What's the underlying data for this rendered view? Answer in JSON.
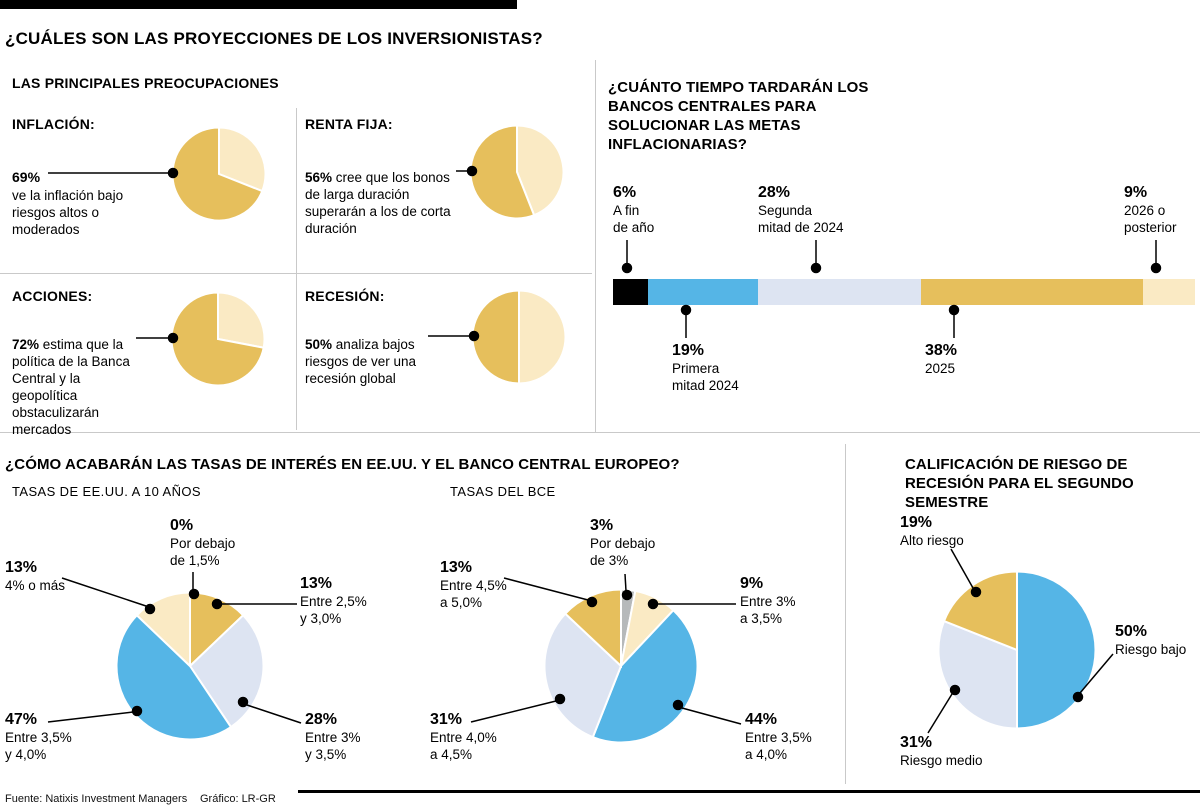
{
  "palette": {
    "gold": "#e6bf5c",
    "cream": "#faeac4",
    "blue": "#55b5e6",
    "lavender": "#dde4f2",
    "gray": "#b6b9ba",
    "black": "#000000"
  },
  "header": {
    "title": "¿CUÁLES SON LAS PROYECCIONES DE LOS INVERSIONISTAS?"
  },
  "concerns": {
    "title": "LAS PRINCIPALES PREOCUPACIONES",
    "items": [
      {
        "label": "INFLACIÓN:",
        "pct": "69%",
        "text": "ve la inflación bajo riesgos altos o moderados"
      },
      {
        "label": "RENTA FIJA:",
        "pct": "56%",
        "text": "cree que los bonos de larga duración superarán a los de corta duración"
      },
      {
        "label": "ACCIONES:",
        "pct": "72%",
        "text": "estima que la política de la Banca Central y la geopolítica obstaculizarán mercados"
      },
      {
        "label": "RECESIÓN:",
        "pct": "50%",
        "text": "analiza bajos riesgos de ver una recesión global"
      }
    ]
  },
  "timeline": {
    "title": "¿CUÁNTO TIEMPO TARDARÁN LOS BANCOS CENTRALES PARA SOLUCIONAR LAS METAS INFLACIONARIAS?",
    "callouts": [
      {
        "pct": "6%",
        "text": "A fin\nde año"
      },
      {
        "pct": "19%",
        "text": "Primera\nmitad 2024"
      },
      {
        "pct": "28%",
        "text": "Segunda\nmitad de 2024"
      },
      {
        "pct": "38%",
        "text": "2025"
      },
      {
        "pct": "9%",
        "text": "2026 o\nposterior"
      }
    ]
  },
  "rates": {
    "title": "¿CÓMO ACABARÁN LAS TASAS DE INTERÉS EN EE.UU. Y EL BANCO CENTRAL EUROPEO?",
    "us": {
      "subtitle": "TASAS DE EE.UU. A 10 AÑOS",
      "callouts": [
        {
          "pct": "0%",
          "text": "Por debajo\nde 1,5%"
        },
        {
          "pct": "13%",
          "text": "Entre 2,5%\ny 3,0%"
        },
        {
          "pct": "28%",
          "text": "Entre 3%\ny 3,5%"
        },
        {
          "pct": "47%",
          "text": "Entre 3,5%\ny 4,0%"
        },
        {
          "pct": "13%",
          "text": "4% o más"
        }
      ]
    },
    "ecb": {
      "subtitle": "TASAS DEL BCE",
      "callouts": [
        {
          "pct": "3%",
          "text": "Por debajo\nde 3%"
        },
        {
          "pct": "9%",
          "text": "Entre 3%\na 3,5%"
        },
        {
          "pct": "44%",
          "text": "Entre 3,5%\na 4,0%"
        },
        {
          "pct": "31%",
          "text": "Entre 4,0%\na 4,5%"
        },
        {
          "pct": "13%",
          "text": "Entre 4,5%\na 5,0%"
        }
      ]
    }
  },
  "risk": {
    "title": "CALIFICACIÓN DE RIESGO DE RECESIÓN PARA EL SEGUNDO SEMESTRE",
    "callouts": [
      {
        "pct": "19%",
        "text": "Alto riesgo"
      },
      {
        "pct": "50%",
        "text": "Riesgo bajo"
      },
      {
        "pct": "31%",
        "text": "Riesgo medio"
      }
    ]
  },
  "footer": {
    "source": "Fuente: Natixis Investment Managers",
    "credit": "Gráfico: LR-GR"
  },
  "chart_data": [
    {
      "type": "pie",
      "title": "INFLACIÓN",
      "slices": [
        {
          "label": "",
          "value": 31,
          "color": "cream"
        },
        {
          "label": "ve la inflación bajo riesgos altos o moderados",
          "value": 69,
          "color": "gold"
        }
      ]
    },
    {
      "type": "pie",
      "title": "RENTA FIJA",
      "slices": [
        {
          "label": "",
          "value": 44,
          "color": "cream"
        },
        {
          "label": "cree que los bonos de larga duración superarán a los de corta duración",
          "value": 56,
          "color": "gold"
        }
      ]
    },
    {
      "type": "pie",
      "title": "ACCIONES",
      "slices": [
        {
          "label": "",
          "value": 28,
          "color": "cream"
        },
        {
          "label": "estima que la política de la Banca Central y la geopolítica obstaculizarán mercados",
          "value": 72,
          "color": "gold"
        }
      ]
    },
    {
      "type": "pie",
      "title": "RECESIÓN",
      "slices": [
        {
          "label": "",
          "value": 50,
          "color": "cream"
        },
        {
          "label": "analiza bajos riesgos de ver una recesión global",
          "value": 50,
          "color": "gold"
        }
      ]
    },
    {
      "type": "bar",
      "stacked": true,
      "title": "¿CUÁNTO TIEMPO TARDARÁN LOS BANCOS CENTRALES PARA SOLUCIONAR LAS METAS INFLACIONARIAS?",
      "segments": [
        {
          "label": "A fin de año",
          "value": 6,
          "color": "black"
        },
        {
          "label": "Primera mitad 2024",
          "value": 19,
          "color": "blue"
        },
        {
          "label": "Segunda mitad de 2024",
          "value": 28,
          "color": "lavender"
        },
        {
          "label": "2025",
          "value": 38,
          "color": "gold"
        },
        {
          "label": "2026 o posterior",
          "value": 9,
          "color": "cream"
        }
      ]
    },
    {
      "type": "pie",
      "title": "TASAS DE EE.UU. A 10 AÑOS",
      "slices": [
        {
          "label": "Por debajo de 1,5%",
          "value": 0,
          "color": "gray"
        },
        {
          "label": "Entre 2,5% y 3,0%",
          "value": 13,
          "color": "gold"
        },
        {
          "label": "Entre 3% y 3,5%",
          "value": 28,
          "color": "lavender"
        },
        {
          "label": "Entre 3,5% y 4,0%",
          "value": 47,
          "color": "blue"
        },
        {
          "label": "4% o más",
          "value": 13,
          "color": "cream"
        }
      ]
    },
    {
      "type": "pie",
      "title": "TASAS DEL BCE",
      "slices": [
        {
          "label": "Por debajo de 3%",
          "value": 3,
          "color": "gray"
        },
        {
          "label": "Entre 3% a 3,5%",
          "value": 9,
          "color": "cream"
        },
        {
          "label": "Entre 3,5% a 4,0%",
          "value": 44,
          "color": "blue"
        },
        {
          "label": "Entre 4,0% a 4,5%",
          "value": 31,
          "color": "lavender"
        },
        {
          "label": "Entre 4,5% a 5,0%",
          "value": 13,
          "color": "gold"
        }
      ]
    },
    {
      "type": "pie",
      "title": "CALIFICACIÓN DE RIESGO DE RECESIÓN PARA EL SEGUNDO SEMESTRE",
      "slices": [
        {
          "label": "Riesgo bajo",
          "value": 50,
          "color": "blue"
        },
        {
          "label": "Riesgo medio",
          "value": 31,
          "color": "lavender"
        },
        {
          "label": "Alto riesgo",
          "value": 19,
          "color": "gold"
        }
      ]
    }
  ]
}
